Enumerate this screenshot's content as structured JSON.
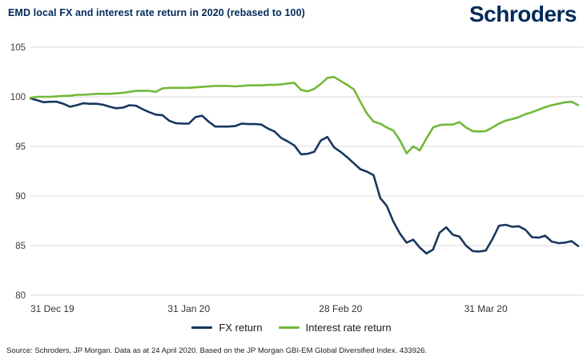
{
  "header": {
    "title": "EMD local FX and interest rate return in 2020 (rebased to 100)",
    "logo_text": "Schroders",
    "brand_color": "#002a5a"
  },
  "chart_data": {
    "type": "line",
    "title": "EMD local FX and interest rate return in 2020 (rebased to 100)",
    "ylim": [
      80,
      105
    ],
    "y_ticks": [
      105,
      100,
      95,
      90,
      85,
      80
    ],
    "grid": "horizontal-only",
    "legend_position": "bottom-center",
    "n_points": 84,
    "x_tick_labels": [
      "31 Dec 19",
      "31 Jan 20",
      "28 Feb 20",
      "31 Mar 20"
    ],
    "x_tick_indices": [
      0,
      24,
      47,
      69
    ],
    "series": [
      {
        "name": "FX return",
        "color": "#17375e",
        "values": [
          99.85,
          99.65,
          99.45,
          99.5,
          99.5,
          99.3,
          99.0,
          99.15,
          99.35,
          99.3,
          99.3,
          99.2,
          99.0,
          98.85,
          98.9,
          99.15,
          99.1,
          98.75,
          98.45,
          98.2,
          98.15,
          97.6,
          97.35,
          97.3,
          97.3,
          97.95,
          98.1,
          97.5,
          97.0,
          97.0,
          97.0,
          97.05,
          97.3,
          97.25,
          97.25,
          97.2,
          96.8,
          96.5,
          95.85,
          95.5,
          95.1,
          94.2,
          94.25,
          94.45,
          95.6,
          95.95,
          94.9,
          94.45,
          93.9,
          93.3,
          92.7,
          92.45,
          92.1,
          89.8,
          89.0,
          87.4,
          86.2,
          85.3,
          85.6,
          84.8,
          84.2,
          84.6,
          86.3,
          86.85,
          86.1,
          85.9,
          85.0,
          84.45,
          84.4,
          84.5,
          85.65,
          87.0,
          87.1,
          86.9,
          86.95,
          86.6,
          85.85,
          85.8,
          86.0,
          85.4,
          85.25,
          85.3,
          85.45,
          84.95
        ]
      },
      {
        "name": "Interest rate return",
        "color": "#72b83a",
        "values": [
          99.9,
          100.0,
          100.0,
          100.0,
          100.05,
          100.1,
          100.1,
          100.2,
          100.2,
          100.25,
          100.3,
          100.3,
          100.3,
          100.35,
          100.4,
          100.5,
          100.6,
          100.6,
          100.6,
          100.5,
          100.85,
          100.9,
          100.9,
          100.9,
          100.9,
          100.95,
          101.0,
          101.05,
          101.1,
          101.1,
          101.1,
          101.05,
          101.1,
          101.15,
          101.15,
          101.15,
          101.2,
          101.2,
          101.25,
          101.35,
          101.4,
          100.7,
          100.55,
          100.8,
          101.3,
          101.9,
          102.0,
          101.6,
          101.2,
          100.75,
          99.5,
          98.3,
          97.5,
          97.3,
          96.9,
          96.6,
          95.6,
          94.3,
          95.0,
          94.6,
          95.8,
          96.9,
          97.15,
          97.2,
          97.2,
          97.45,
          96.9,
          96.55,
          96.5,
          96.55,
          96.9,
          97.3,
          97.6,
          97.75,
          97.95,
          98.25,
          98.45,
          98.7,
          98.95,
          99.15,
          99.3,
          99.45,
          99.5,
          99.15
        ]
      }
    ]
  },
  "legend": {
    "items": [
      {
        "label": "FX return"
      },
      {
        "label": "Interest rate return"
      }
    ]
  },
  "footer": {
    "source": "Source: Schroders, JP Morgan. Data as at 24 April 2020. Based on the JP Morgan GBI-EM Global Diversified Index. 433926."
  },
  "style": {
    "grid_color": "#d9d9d9",
    "axis_label_color": "#3d3d3d",
    "x_label_color": "#333333"
  }
}
